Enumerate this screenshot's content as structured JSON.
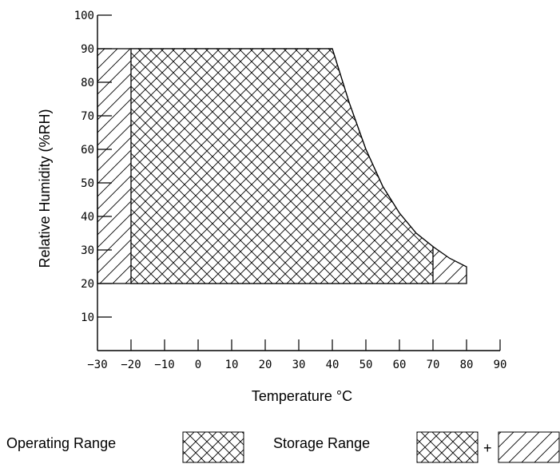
{
  "chart_data": {
    "type": "area",
    "xlabel": "Temperature  °C",
    "ylabel": "Relative  Humidity (%RH)",
    "xlim": [
      -30,
      90
    ],
    "ylim": [
      0,
      100
    ],
    "x_ticks": [
      -30,
      -20,
      -10,
      0,
      10,
      20,
      30,
      40,
      50,
      60,
      70,
      80,
      90
    ],
    "y_ticks": [
      10,
      20,
      30,
      40,
      50,
      60,
      70,
      80,
      90,
      100
    ],
    "x_tick_labels": [
      "−30",
      "−20",
      "−10",
      "0",
      "10",
      "20",
      "30",
      "40",
      "50",
      "60",
      "70",
      "80",
      "90"
    ],
    "y_tick_labels": [
      "10",
      "20",
      "30",
      "40",
      "50",
      "60",
      "70",
      "80",
      "90",
      "100"
    ],
    "regions": [
      {
        "name": "Operating Range",
        "pattern": "crosshatch",
        "boundary": [
          [
            -20,
            20
          ],
          [
            -20,
            90
          ],
          [
            40,
            90
          ],
          [
            45,
            74
          ],
          [
            50,
            60
          ],
          [
            55,
            49
          ],
          [
            60,
            41
          ],
          [
            65,
            35
          ],
          [
            70,
            31
          ],
          [
            70,
            20
          ]
        ]
      },
      {
        "name": "Storage Range",
        "pattern": "crosshatch + diagonal",
        "boundary": [
          [
            -30,
            20
          ],
          [
            -30,
            90
          ],
          [
            40,
            90
          ],
          [
            45,
            74
          ],
          [
            50,
            60
          ],
          [
            55,
            49
          ],
          [
            60,
            41
          ],
          [
            65,
            35
          ],
          [
            70,
            31
          ],
          [
            75,
            27.5
          ],
          [
            80,
            25
          ],
          [
            80,
            20
          ]
        ]
      }
    ],
    "legend": {
      "operating_label": "Operating  Range",
      "storage_label": "Storage  Range",
      "plus": "+"
    }
  }
}
